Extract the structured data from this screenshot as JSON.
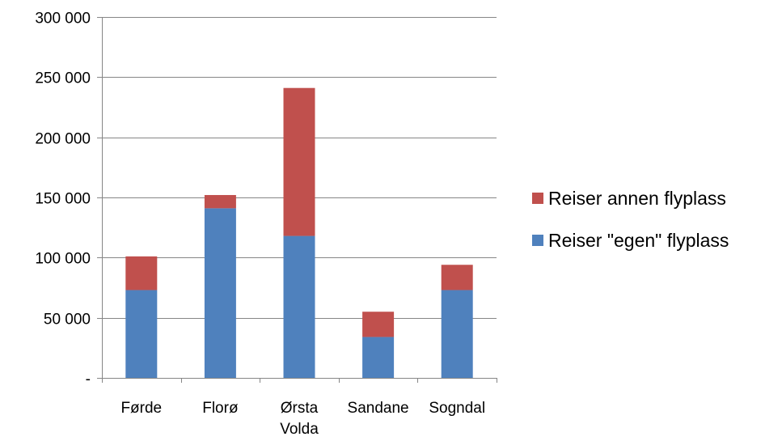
{
  "chart_data": {
    "type": "bar",
    "stacked": true,
    "categories": [
      [
        "Førde"
      ],
      [
        "Florø"
      ],
      [
        "Ørsta",
        "Volda"
      ],
      [
        "Sandane"
      ],
      [
        "Sogndal"
      ]
    ],
    "series": [
      {
        "name": "Reiser \"egen\" flyplass",
        "color": "#4f81bd",
        "values": [
          73000,
          141000,
          118000,
          34000,
          73000
        ]
      },
      {
        "name": "Reiser annen flyplass",
        "color": "#c0504d",
        "values": [
          28000,
          11000,
          123000,
          21000,
          21000
        ]
      }
    ],
    "ylim": [
      0,
      300000
    ],
    "yticks": [
      0,
      50000,
      100000,
      150000,
      200000,
      250000,
      300000
    ],
    "ytick_labels": [
      "-",
      "50 000",
      "100 000",
      "150 000",
      "200 000",
      "250 000",
      "300 000"
    ],
    "grid": true,
    "legend_position": "right",
    "legend_order": [
      1,
      0
    ]
  }
}
